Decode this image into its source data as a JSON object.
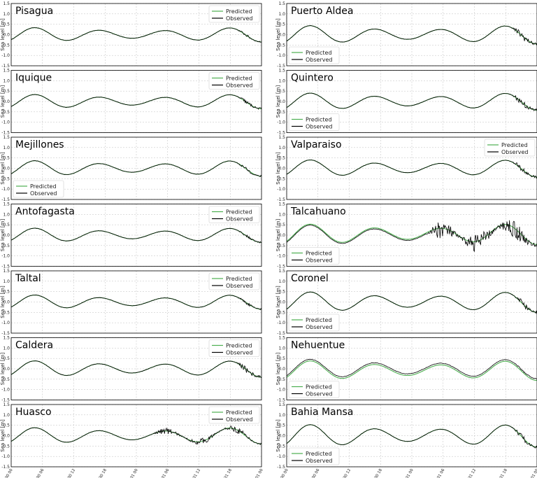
{
  "chart_data": {
    "type": "line",
    "ylabel": "Sea level [m]",
    "yticks": [
      "1.5",
      "1.0",
      "0.5",
      "0.0",
      "-0.5",
      "-1.0",
      "-1.5"
    ],
    "ylim": [
      -1.5,
      1.5
    ],
    "xticks": [
      "07-30 00",
      "07-30 06",
      "07-30 12",
      "07-30 18",
      "07-31 00",
      "07-31 06",
      "07-31 12",
      "07-31 18",
      "08-01 00"
    ],
    "xlim": [
      "07-30 00",
      "08-01 00"
    ],
    "grid": true,
    "legend_entries": [
      "Predicted",
      "Observed"
    ],
    "series_colors": {
      "Predicted": "#4caf50",
      "Observed": "#000000"
    },
    "panels": [
      {
        "station": "Pisagua",
        "legend": "upper right",
        "amp": 0.35,
        "noise": 0.12,
        "noise_start": 43,
        "pred_offset": 0
      },
      {
        "station": "Puerto Aldea",
        "legend": "lower left",
        "amp": 0.45,
        "noise": 0.35,
        "noise_start": 43,
        "pred_offset": 0
      },
      {
        "station": "Iquique",
        "legend": "upper right",
        "amp": 0.35,
        "noise": 0.2,
        "noise_start": 43,
        "pred_offset": 0
      },
      {
        "station": "Quintero",
        "legend": "lower left",
        "amp": 0.42,
        "noise": 0.35,
        "noise_start": 43,
        "pred_offset": 0
      },
      {
        "station": "Mejillones",
        "legend": "lower left",
        "amp": 0.38,
        "noise": 0.15,
        "noise_start": 43,
        "pred_offset": 0
      },
      {
        "station": "Valparaiso",
        "legend": "upper right",
        "amp": 0.42,
        "noise": 0.3,
        "noise_start": 43,
        "pred_offset": 0
      },
      {
        "station": "Antofagasta",
        "legend": "upper right",
        "amp": 0.35,
        "noise": 0.12,
        "noise_start": 43,
        "pred_offset": 0
      },
      {
        "station": "Talcahuano",
        "legend": "lower left",
        "amp": 0.5,
        "noise": 0.45,
        "noise_start": 26,
        "pred_offset": 0.05
      },
      {
        "station": "Taltal",
        "legend": "upper right",
        "amp": 0.35,
        "noise": 0.15,
        "noise_start": 43,
        "pred_offset": 0
      },
      {
        "station": "Coronel",
        "legend": "lower left",
        "amp": 0.5,
        "noise": 0.32,
        "noise_start": 43,
        "pred_offset": 0
      },
      {
        "station": "Caldera",
        "legend": "upper right",
        "amp": 0.4,
        "noise": 0.3,
        "noise_start": 43,
        "pred_offset": 0
      },
      {
        "station": "Nehuentue",
        "legend": "lower left",
        "amp": 0.48,
        "noise": 0.08,
        "noise_start": 43,
        "pred_offset": -0.08
      },
      {
        "station": "Huasco",
        "legend": "upper right",
        "amp": 0.4,
        "noise": 0.15,
        "noise_start": 26,
        "pred_offset": 0
      },
      {
        "station": "Bahia Mansa",
        "legend": "lower left",
        "amp": 0.55,
        "noise": 0.25,
        "noise_start": 43,
        "pred_offset": 0
      }
    ]
  }
}
